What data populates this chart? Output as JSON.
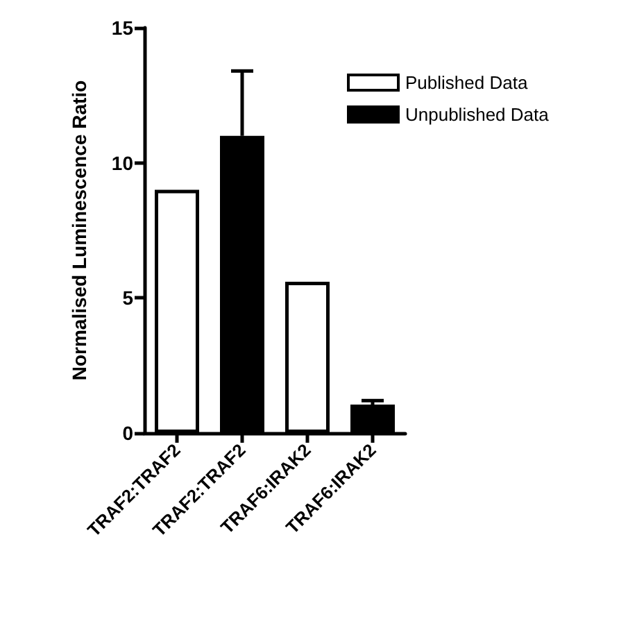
{
  "chart_data": {
    "type": "bar",
    "ylabel": "Normalised Luminescence Ratio",
    "categories": [
      "TRAF2:TRAF2",
      "TRAF2:TRAF2",
      "TRAF6:IRAK2",
      "TRAF6:IRAK2"
    ],
    "series": [
      {
        "name": "Published Data",
        "color": "#ffffff",
        "values": [
          9.0,
          null,
          5.6,
          null
        ]
      },
      {
        "name": "Unpublished Data",
        "color": "#000000",
        "values": [
          null,
          11.0,
          null,
          1.05
        ],
        "errors": [
          null,
          [
            11.0,
            13.4
          ],
          null,
          [
            1.05,
            1.2
          ]
        ]
      }
    ],
    "ylim": [
      0,
      15
    ],
    "yticks": [
      0,
      5,
      10,
      15
    ],
    "grid": false,
    "legend": "top right"
  }
}
